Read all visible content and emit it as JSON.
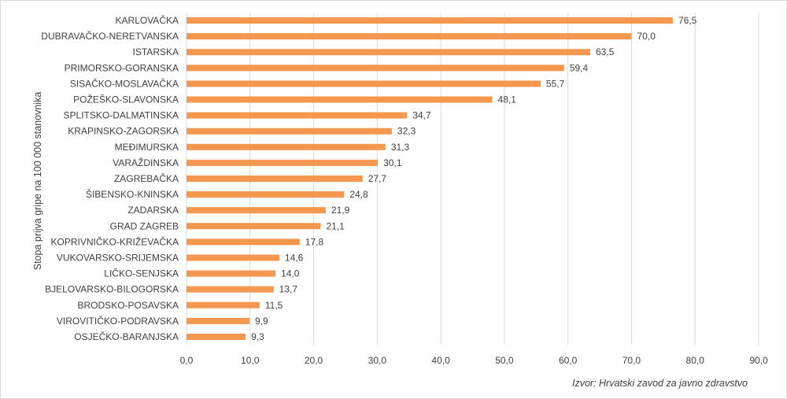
{
  "chart_data": {
    "type": "bar",
    "orientation": "horizontal",
    "ylabel": "Stopa prijva gripe na 100 000 stanovnika",
    "categories": [
      "KARLOVAČKA",
      "DUBRAVAČKO-NERETVANSKA",
      "ISTARSKA",
      "PRIMORSKO-GORANSKA",
      "SISAČKO-MOSLAVAČKA",
      "POŽEŠKO-SLAVONSKA",
      "SPLITSKO-DALMATINSKA",
      "KRAPINSKO-ZAGORSKA",
      "MEĐIMURSKA",
      "VARAŽDINSKA",
      "ZAGREBAČKA",
      "ŠIBENSKO-KNINSKA",
      "ZADARSKA",
      "GRAD ZAGREB",
      "KOPRIVNIČKO-KRIŽEVAČKA",
      "VUKOVARSKO-SRIJEMSKA",
      "LIČKO-SENJSKA",
      "BJELOVARSKO-BILOGORSKA",
      "BRODSKO-POSAVSKA",
      "VIROVITIČKO-PODRAVSKA",
      "OSJEČKO-BARANJSKA"
    ],
    "values": [
      76.5,
      70.0,
      63.5,
      59.4,
      55.7,
      48.1,
      34.7,
      32.3,
      31.3,
      30.1,
      27.7,
      24.8,
      21.9,
      21.1,
      17.8,
      14.6,
      14.0,
      13.7,
      11.5,
      9.9,
      9.3
    ],
    "value_labels": [
      "76,5",
      "70,0",
      "63,5",
      "59,4",
      "55,7",
      "48,1",
      "34,7",
      "32,3",
      "31,3",
      "30,1",
      "27,7",
      "24,8",
      "21,9",
      "21,1",
      "17,8",
      "14,6",
      "14,0",
      "13,7",
      "11,5",
      "9,9",
      "9,3"
    ],
    "xlim": [
      0,
      90
    ],
    "x_ticks": [
      0,
      10,
      20,
      30,
      40,
      50,
      60,
      70,
      80,
      90
    ],
    "x_tick_labels": [
      "0,0",
      "10,0",
      "20,0",
      "30,0",
      "40,0",
      "50,0",
      "60,0",
      "70,0",
      "80,0",
      "90,0"
    ],
    "grid": "vertical",
    "bar_color": "#F4974F",
    "grid_color": "#d9d9d9",
    "source": "Izvor: Hrvatski zavod za javno zdravstvo"
  }
}
